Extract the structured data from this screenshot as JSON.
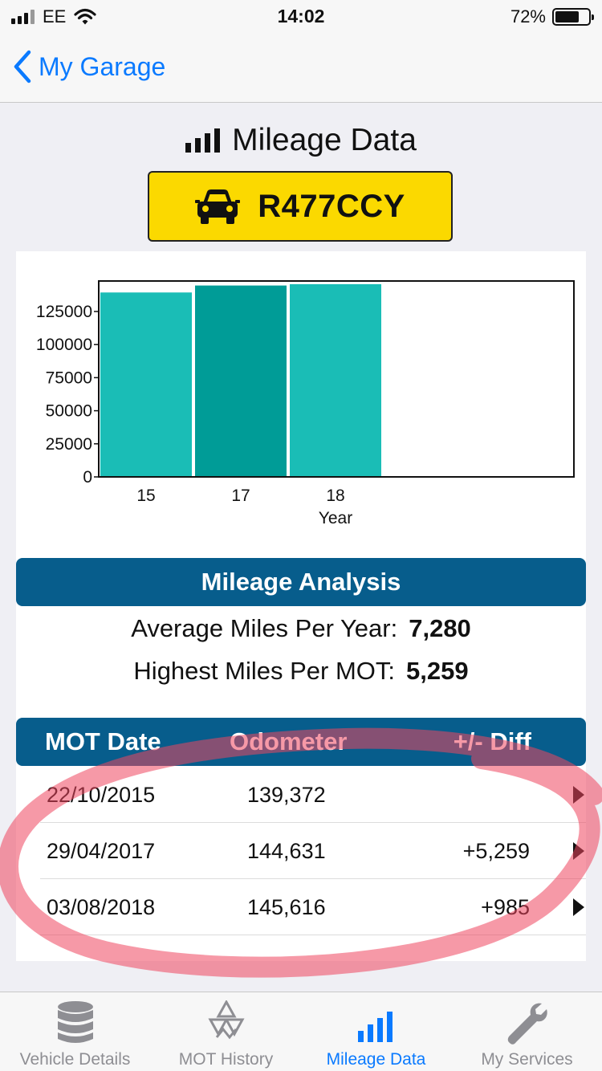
{
  "status_bar": {
    "carrier": "EE",
    "time": "14:02",
    "battery": "72%"
  },
  "nav": {
    "back_label": "My Garage"
  },
  "page": {
    "title": "Mileage Data",
    "plate": "R477CCY"
  },
  "chart_data": {
    "type": "bar",
    "categories": [
      "15",
      "17",
      "18"
    ],
    "values": [
      139372,
      144631,
      145616
    ],
    "xlabel": "Year",
    "ylabel": "",
    "ylim": [
      0,
      145616
    ],
    "yticks": [
      0,
      25000,
      50000,
      75000,
      100000,
      125000
    ],
    "highlight_index": 1,
    "grid": false,
    "colors": {
      "bar": "#1abdb6",
      "bar_highlight": "#009c97"
    }
  },
  "analysis": {
    "title": "Mileage Analysis",
    "avg_label": "Average Miles Per Year:",
    "avg_value": "7,280",
    "high_label": "Highest Miles Per MOT:",
    "high_value": "5,259"
  },
  "table": {
    "headers": {
      "date": "MOT Date",
      "odometer": "Odometer",
      "diff": "+/- Diff"
    },
    "rows": [
      {
        "date": "22/10/2015",
        "odometer": "139,372",
        "diff": ""
      },
      {
        "date": "29/04/2017",
        "odometer": "144,631",
        "diff": "+5,259"
      },
      {
        "date": "03/08/2018",
        "odometer": "145,616",
        "diff": "+985"
      }
    ]
  },
  "tabs": [
    {
      "label": "Vehicle Details",
      "icon": "database-icon",
      "active": false
    },
    {
      "label": "MOT History",
      "icon": "mot-triangles-icon",
      "active": false
    },
    {
      "label": "Mileage Data",
      "icon": "bar-chart-icon",
      "active": true
    },
    {
      "label": "My Services",
      "icon": "wrench-icon",
      "active": false
    }
  ],
  "colors": {
    "accent": "#0a7aff",
    "header_blue": "#075d8c",
    "plate_yellow": "#fbd900"
  }
}
